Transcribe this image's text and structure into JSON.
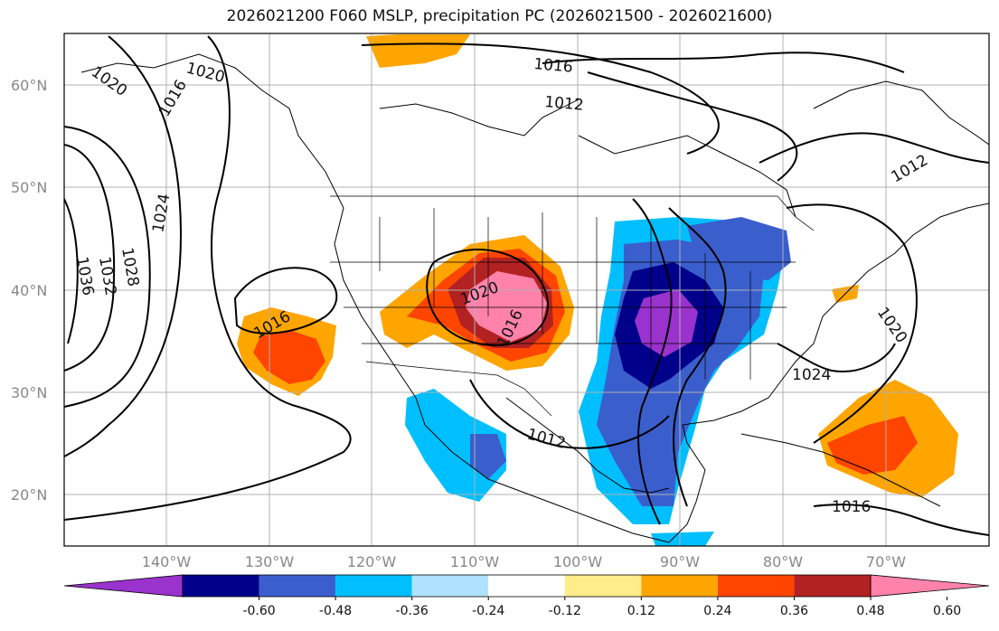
{
  "title": "2026021200 F060 MSLP, precipitation PC (2026021500 - 2026021600)",
  "map": {
    "lat_ticks": [
      "60°N",
      "50°N",
      "40°N",
      "30°N",
      "20°N"
    ],
    "lon_ticks": [
      "140°W",
      "130°W",
      "120°W",
      "110°W",
      "100°W",
      "90°W",
      "80°W",
      "70°W"
    ],
    "isobar_labels": [
      "1020",
      "1020",
      "1016",
      "1012",
      "1016",
      "1012",
      "1024",
      "1028",
      "1032",
      "1036",
      "1016",
      "1020",
      "1016",
      "1012",
      "1024",
      "1020",
      "1016"
    ]
  },
  "colorbar": {
    "labels": [
      "-0.60",
      "-0.48",
      "-0.36",
      "-0.24",
      "-0.12",
      "0.12",
      "0.24",
      "0.36",
      "0.48",
      "0.60"
    ],
    "colors": [
      "#9a32cd",
      "#00008b",
      "#3a5fcd",
      "#00bfff",
      "#b0e2ff",
      "#ffffff",
      "#ffec8b",
      "#ffa500",
      "#ff4500",
      "#b22222",
      "#ff82ab"
    ]
  }
}
